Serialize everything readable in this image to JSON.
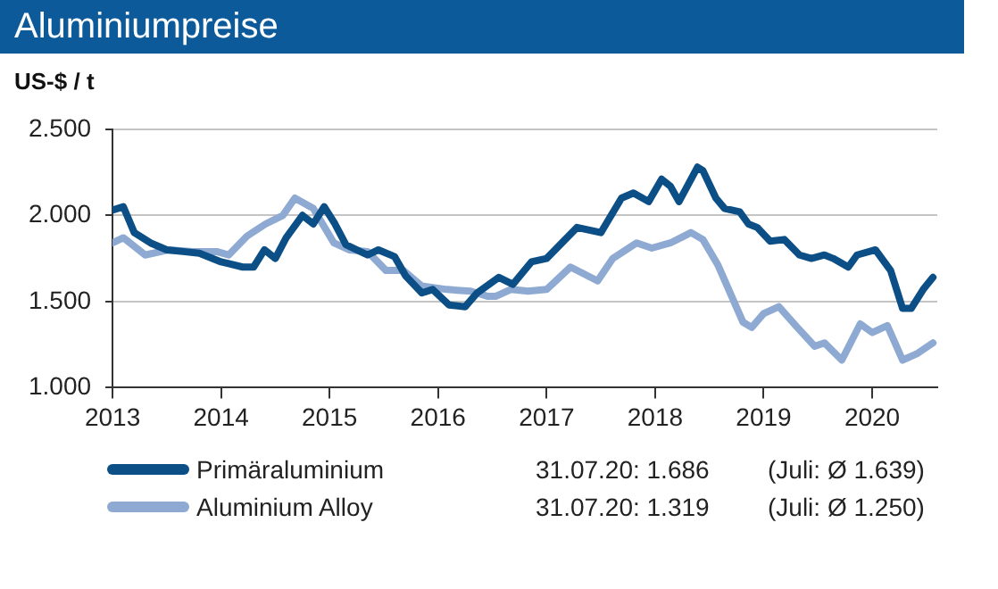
{
  "chart_data": {
    "type": "line",
    "title": "Aluminiumpreise",
    "ylabel": "US-$ / t",
    "xlim": [
      2013,
      2020.6
    ],
    "xticks": [
      2013,
      2014,
      2015,
      2016,
      2017,
      2018,
      2019,
      2020
    ],
    "ylim": [
      1000,
      2500
    ],
    "yticks": [
      {
        "value": 1000,
        "label": "1.000"
      },
      {
        "value": 1500,
        "label": "1.500"
      },
      {
        "value": 2000,
        "label": "2.000"
      },
      {
        "value": 2500,
        "label": "2.500"
      }
    ],
    "grid": "y",
    "legend": "bottom",
    "marker": "none",
    "line_style": "solid",
    "series": [
      {
        "name": "Primäraluminium",
        "color": "#0b4f86",
        "x": [
          2013.0,
          2013.1,
          2013.2,
          2013.35,
          2013.5,
          2013.65,
          2013.8,
          2014.0,
          2014.2,
          2014.3,
          2014.4,
          2014.5,
          2014.6,
          2014.75,
          2014.85,
          2014.95,
          2015.05,
          2015.15,
          2015.35,
          2015.45,
          2015.6,
          2015.7,
          2015.85,
          2015.95,
          2016.1,
          2016.25,
          2016.36,
          2016.56,
          2016.69,
          2016.86,
          2017.0,
          2017.28,
          2017.5,
          2017.69,
          2017.8,
          2017.94,
          2018.06,
          2018.14,
          2018.22,
          2018.39,
          2018.44,
          2018.56,
          2018.64,
          2018.78,
          2018.86,
          2018.94,
          2019.06,
          2019.19,
          2019.33,
          2019.44,
          2019.56,
          2019.64,
          2019.78,
          2019.86,
          2020.03,
          2020.17,
          2020.28,
          2020.36,
          2020.47,
          2020.56
        ],
        "values": [
          2030,
          2050,
          1900,
          1840,
          1800,
          1790,
          1780,
          1730,
          1700,
          1700,
          1800,
          1750,
          1870,
          2000,
          1950,
          2050,
          1950,
          1830,
          1770,
          1800,
          1760,
          1650,
          1550,
          1570,
          1480,
          1470,
          1550,
          1640,
          1600,
          1730,
          1750,
          1930,
          1900,
          2100,
          2130,
          2080,
          2210,
          2170,
          2080,
          2280,
          2260,
          2100,
          2040,
          2020,
          1950,
          1930,
          1850,
          1860,
          1770,
          1750,
          1770,
          1750,
          1700,
          1770,
          1800,
          1680,
          1460,
          1460,
          1570,
          1640
        ]
      },
      {
        "name": "Aluminium Alloy",
        "color": "#8eaad2",
        "x": [
          2013.0,
          2013.1,
          2013.3,
          2013.52,
          2013.74,
          2013.96,
          2014.07,
          2014.24,
          2014.41,
          2014.57,
          2014.68,
          2014.85,
          2015.04,
          2015.18,
          2015.35,
          2015.52,
          2015.68,
          2015.85,
          2016.08,
          2016.3,
          2016.46,
          2016.53,
          2016.67,
          2016.83,
          2017.0,
          2017.22,
          2017.47,
          2017.61,
          2017.83,
          2017.97,
          2018.14,
          2018.33,
          2018.44,
          2018.58,
          2018.81,
          2018.89,
          2019.0,
          2019.14,
          2019.31,
          2019.47,
          2019.56,
          2019.72,
          2019.89,
          2020.0,
          2020.14,
          2020.28,
          2020.42,
          2020.56
        ],
        "values": [
          1840,
          1870,
          1770,
          1800,
          1790,
          1790,
          1770,
          1880,
          1950,
          2000,
          2100,
          2040,
          1840,
          1800,
          1790,
          1680,
          1680,
          1590,
          1570,
          1560,
          1530,
          1530,
          1570,
          1560,
          1570,
          1700,
          1620,
          1750,
          1840,
          1810,
          1840,
          1900,
          1860,
          1710,
          1380,
          1350,
          1430,
          1470,
          1350,
          1240,
          1260,
          1160,
          1370,
          1320,
          1360,
          1160,
          1200,
          1260
        ]
      }
    ],
    "annotations": [
      "31.07.20: 1.686",
      "(Juli: Ø 1.639)",
      "31.07.20: 1.319",
      "(Juli: Ø 1.250)"
    ]
  }
}
